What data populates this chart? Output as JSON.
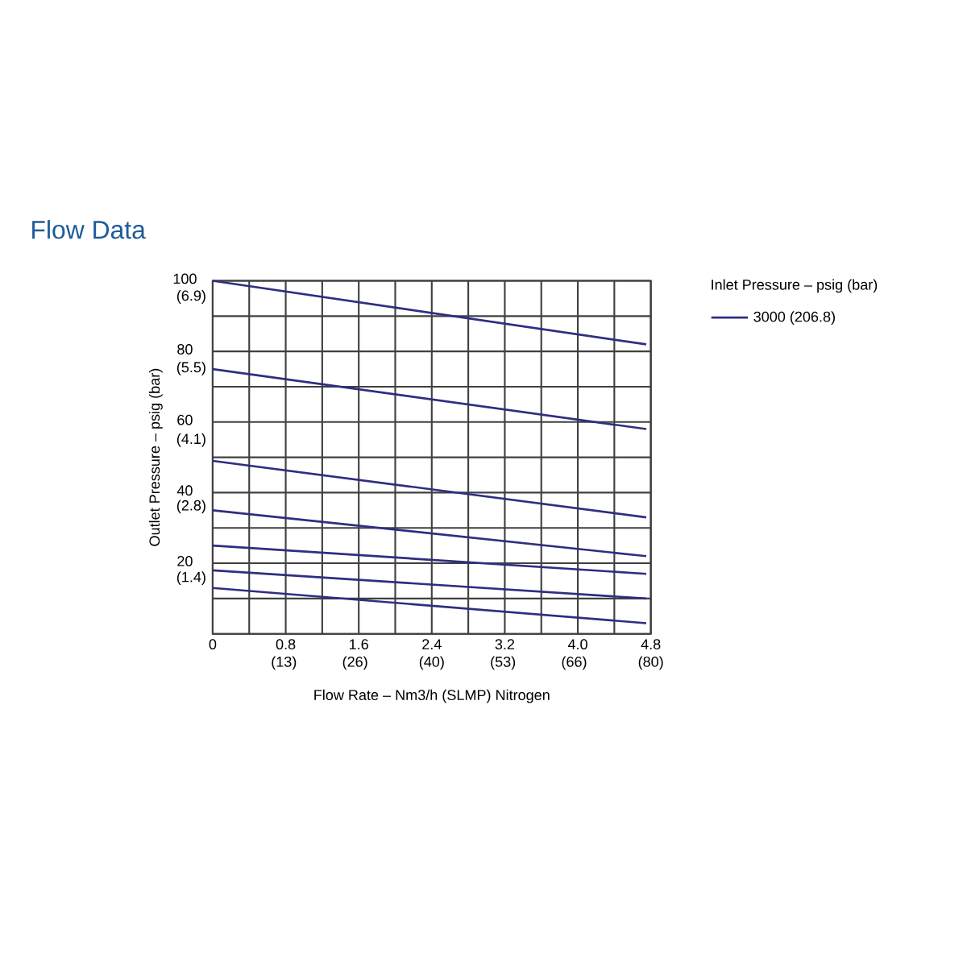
{
  "chart_data": {
    "type": "line",
    "title": "Flow Data",
    "xlabel": "Flow Rate – Nm3/h (SLMP) Nitrogen",
    "ylabel": "Outlet Pressure – psig (bar)",
    "legend_title": "Inlet Pressure – psig (bar)",
    "x": [
      0,
      4.75
    ],
    "series": [
      {
        "name": "3000 (206.8)",
        "color": "#2e2e82",
        "values": [
          100,
          82
        ]
      },
      {
        "color": "#2e2e82",
        "values": [
          75,
          58
        ]
      },
      {
        "color": "#2e2e82",
        "values": [
          49,
          33
        ]
      },
      {
        "color": "#2e2e82",
        "values": [
          35,
          22
        ]
      },
      {
        "color": "#2e2e82",
        "values": [
          25,
          17
        ]
      },
      {
        "color": "#2e2e82",
        "values": [
          18,
          10
        ]
      },
      {
        "color": "#2e2e82",
        "values": [
          13,
          3
        ]
      }
    ],
    "xlim": [
      0,
      4.8
    ],
    "xticks": [
      0,
      {
        "value": 0.4,
        "label": null
      },
      0.8,
      {
        "value": 1.2,
        "label": null
      },
      1.6,
      {
        "value": 2.0,
        "label": null
      },
      2.4,
      {
        "value": 2.8,
        "label": null
      },
      3.2,
      {
        "value": 3.6,
        "label": null
      },
      {
        "value": 4.0,
        "label": "4.0"
      },
      {
        "value": 4.4,
        "label": null
      },
      4.8
    ],
    "x2lim": [
      0,
      80
    ],
    "x2ticks": [
      {
        "value": 13,
        "label": "(13)"
      },
      {
        "value": 26,
        "label": "(26)"
      },
      {
        "value": 40,
        "label": "(40)"
      },
      {
        "value": 53,
        "label": "(53)"
      },
      {
        "value": 66,
        "label": "(66)"
      },
      {
        "value": 80,
        "label": "(80)"
      }
    ],
    "ylim": [
      0,
      100
    ],
    "yticks": [
      {
        "value": 0,
        "label": null
      },
      {
        "value": 10,
        "label": null
      },
      20,
      {
        "value": 30,
        "label": null
      },
      40,
      {
        "value": 50,
        "label": null
      },
      60,
      {
        "value": 70,
        "label": null
      },
      80,
      {
        "value": 90,
        "label": null
      },
      100
    ],
    "y2lim": [
      0,
      6.9
    ],
    "y2ticks": [
      {
        "value": 1.4,
        "label": "(1.4)"
      },
      {
        "value": 2.8,
        "label": "(2.8)"
      },
      {
        "value": 4.1,
        "label": "(4.1)"
      },
      {
        "value": 5.5,
        "label": "(5.5)"
      },
      {
        "value": 6.9,
        "label": "(6.9)"
      }
    ],
    "grid": true,
    "legend": "right"
  }
}
